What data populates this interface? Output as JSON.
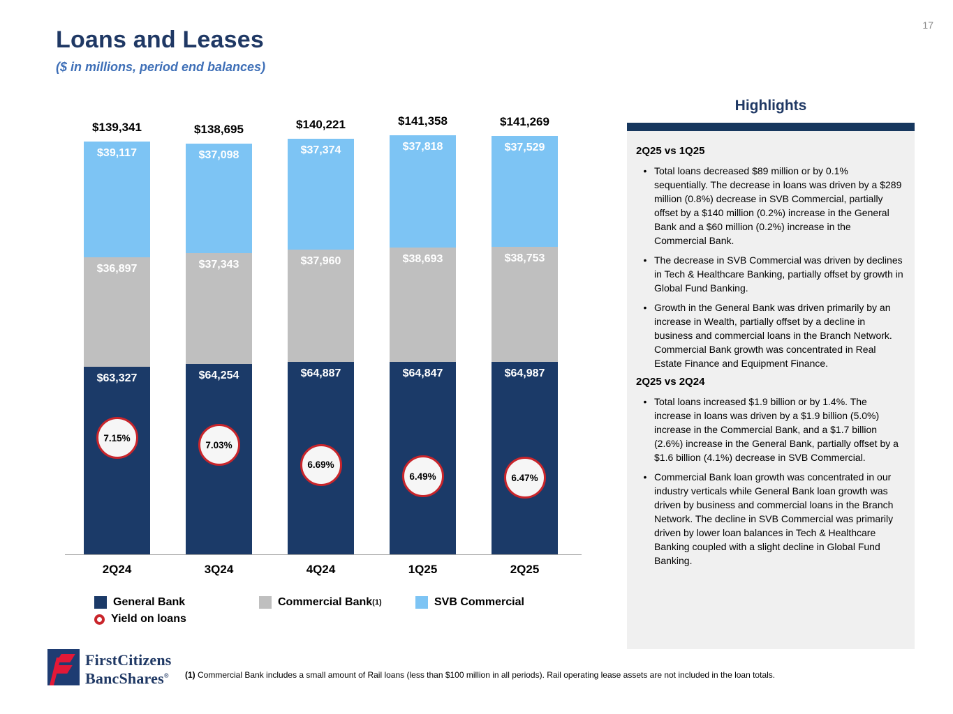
{
  "page": {
    "number": "17"
  },
  "header": {
    "title": "Loans and Leases",
    "subtitle": "($ in millions, period end balances)"
  },
  "chart_data": {
    "type": "bar",
    "stacked": true,
    "title": "Loans and Leases ($ in millions, period end balances)",
    "categories": [
      "2Q24",
      "3Q24",
      "4Q24",
      "1Q25",
      "2Q25"
    ],
    "series": [
      {
        "name": "General Bank",
        "color": "#1B3A68",
        "values": [
          63327,
          64254,
          64887,
          64847,
          64987
        ],
        "labels": [
          "$63,327",
          "$64,254",
          "$64,887",
          "$64,847",
          "$64,987"
        ]
      },
      {
        "name": "Commercial Bank",
        "color": "#BFBFBF",
        "values": [
          36897,
          37343,
          37960,
          38693,
          38753
        ],
        "labels": [
          "$36,897",
          "$37,343",
          "$37,960",
          "$38,693",
          "$38,753"
        ]
      },
      {
        "name": "SVB Commercial",
        "color": "#7DC4F4",
        "values": [
          39117,
          37098,
          37374,
          37818,
          37529
        ],
        "labels": [
          "$39,117",
          "$37,098",
          "$37,374",
          "$37,818",
          "$37,529"
        ]
      }
    ],
    "totals": [
      139341,
      138695,
      140221,
      141358,
      141269
    ],
    "total_labels": [
      "$139,341",
      "$138,695",
      "$140,221",
      "$141,358",
      "$141,269"
    ],
    "yield_on_loans": {
      "name": "Yield on loans",
      "values_pct": [
        7.15,
        7.03,
        6.69,
        6.49,
        6.47
      ],
      "labels": [
        "7.15%",
        "7.03%",
        "6.69%",
        "6.49%",
        "6.47%"
      ],
      "marker_fill": "#f6f6f6",
      "marker_border": "#C9252B"
    },
    "legend_position": "bottom",
    "grid": false,
    "y_axis_visible": false
  },
  "legend": {
    "items": [
      {
        "label": "General Bank"
      },
      {
        "label": "Commercial Bank",
        "sup": "(1)"
      },
      {
        "label": "SVB Commercial"
      },
      {
        "label": "Yield on loans"
      }
    ]
  },
  "highlights": {
    "title": "Highlights",
    "sections": [
      {
        "heading": "2Q25 vs 1Q25",
        "bullets": [
          "Total loans decreased $89 million or by 0.1% sequentially. The decrease in loans was driven by a $289 million (0.8%) decrease in SVB Commercial, partially offset by a $140 million (0.2%) increase in the General Bank and a $60 million (0.2%) increase in the Commercial Bank.",
          "The decrease in SVB Commercial was driven by declines in Tech & Healthcare Banking, partially offset by growth in Global Fund Banking.",
          "Growth in the General Bank was driven primarily by an increase in Wealth, partially offset by a decline in business and commercial loans in the Branch Network. Commercial Bank growth was concentrated in Real Estate Finance and Equipment Finance."
        ]
      },
      {
        "heading": "2Q25 vs 2Q24",
        "bullets": [
          "Total loans increased $1.9 billion or by 1.4%. The increase in loans was driven by a $1.9 billion (5.0%) increase in the Commercial Bank, and a $1.7 billion (2.6%) increase in the General Bank, partially offset by a $1.6 billion (4.1%) decrease in SVB Commercial.",
          "Commercial Bank loan growth was concentrated in our industry verticals while General Bank loan growth was driven by business and commercial loans in the Branch Network. The decline in SVB Commercial was primarily driven by lower loan balances in Tech & Healthcare Banking coupled with a slight decline in Global Fund Banking."
        ]
      }
    ]
  },
  "footer": {
    "logo_line1": "FirstCitizens",
    "logo_line2": "BancShares",
    "logo_registered": "®",
    "footnote_marker": "(1)",
    "footnote_text": "Commercial Bank includes a small amount of Rail loans (less than $100 million in all periods).  Rail operating lease assets are not included in the loan totals."
  },
  "colors": {
    "title_navy": "#1F3864",
    "subtitle_blue": "#3E6FB7",
    "general_bank_navy": "#1B3A68",
    "commercial_bank_gray": "#BFBFBF",
    "svb_commercial_blue": "#7DC4F4",
    "yield_red": "#C9252B",
    "highlights_bar_navy": "#17375E",
    "panel_gray": "#F0F0F0",
    "logo_red": "#E31837"
  }
}
